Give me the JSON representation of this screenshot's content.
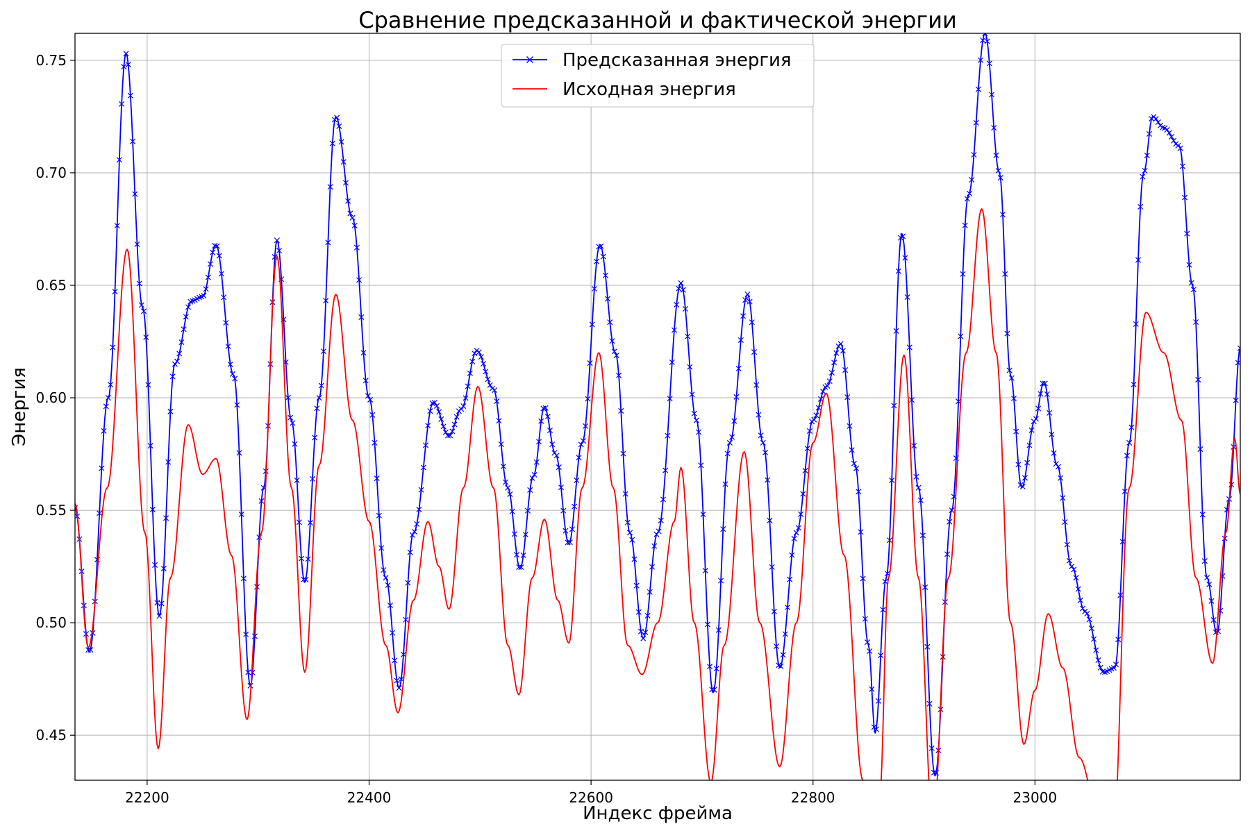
{
  "chart_data": {
    "type": "line",
    "title": "Сравнение предсказанной и фактической энергии",
    "xlabel": "Индекс фрейма",
    "ylabel": "Энергия",
    "xlim": [
      22135,
      23185
    ],
    "ylim": [
      0.43,
      0.762
    ],
    "xticks": [
      22200,
      22400,
      22600,
      22800,
      23000
    ],
    "yticks": [
      0.45,
      0.5,
      0.55,
      0.6,
      0.65,
      0.7,
      0.75
    ],
    "grid": true,
    "legend_position": "top-center",
    "series": [
      {
        "name": "Предсказанная энергия",
        "color": "#0000ff",
        "marker": "x",
        "keypoints": [
          [
            22135,
            0.551
          ],
          [
            22148,
            0.487
          ],
          [
            22165,
            0.6
          ],
          [
            22181,
            0.753
          ],
          [
            22196,
            0.64
          ],
          [
            22211,
            0.503
          ],
          [
            22225,
            0.615
          ],
          [
            22240,
            0.643
          ],
          [
            22250,
            0.645
          ],
          [
            22262,
            0.668
          ],
          [
            22278,
            0.61
          ],
          [
            22293,
            0.472
          ],
          [
            22305,
            0.56
          ],
          [
            22317,
            0.67
          ],
          [
            22330,
            0.59
          ],
          [
            22342,
            0.518
          ],
          [
            22355,
            0.6
          ],
          [
            22370,
            0.725
          ],
          [
            22385,
            0.68
          ],
          [
            22400,
            0.6
          ],
          [
            22415,
            0.52
          ],
          [
            22427,
            0.471
          ],
          [
            22440,
            0.54
          ],
          [
            22458,
            0.598
          ],
          [
            22472,
            0.583
          ],
          [
            22483,
            0.595
          ],
          [
            22497,
            0.621
          ],
          [
            22512,
            0.604
          ],
          [
            22525,
            0.56
          ],
          [
            22536,
            0.524
          ],
          [
            22548,
            0.565
          ],
          [
            22558,
            0.596
          ],
          [
            22568,
            0.575
          ],
          [
            22580,
            0.535
          ],
          [
            22592,
            0.58
          ],
          [
            22608,
            0.668
          ],
          [
            22622,
            0.62
          ],
          [
            22635,
            0.54
          ],
          [
            22647,
            0.493
          ],
          [
            22660,
            0.54
          ],
          [
            22681,
            0.651
          ],
          [
            22695,
            0.59
          ],
          [
            22710,
            0.469
          ],
          [
            22725,
            0.58
          ],
          [
            22741,
            0.646
          ],
          [
            22755,
            0.58
          ],
          [
            22770,
            0.48
          ],
          [
            22785,
            0.54
          ],
          [
            22800,
            0.59
          ],
          [
            22812,
            0.605
          ],
          [
            22825,
            0.624
          ],
          [
            22838,
            0.57
          ],
          [
            22850,
            0.49
          ],
          [
            22856,
            0.451
          ],
          [
            22866,
            0.52
          ],
          [
            22880,
            0.673
          ],
          [
            22895,
            0.56
          ],
          [
            22910,
            0.432
          ],
          [
            22925,
            0.55
          ],
          [
            22940,
            0.69
          ],
          [
            22955,
            0.762
          ],
          [
            22968,
            0.7
          ],
          [
            22978,
            0.61
          ],
          [
            22988,
            0.56
          ],
          [
            23000,
            0.59
          ],
          [
            23008,
            0.607
          ],
          [
            23020,
            0.57
          ],
          [
            23033,
            0.525
          ],
          [
            23045,
            0.505
          ],
          [
            23062,
            0.478
          ],
          [
            23072,
            0.48
          ],
          [
            23085,
            0.58
          ],
          [
            23098,
            0.7
          ],
          [
            23106,
            0.725
          ],
          [
            23116,
            0.72
          ],
          [
            23130,
            0.712
          ],
          [
            23142,
            0.65
          ],
          [
            23155,
            0.52
          ],
          [
            23164,
            0.495
          ],
          [
            23175,
            0.555
          ],
          [
            23185,
            0.622
          ]
        ]
      },
      {
        "name": "Исходная энергия",
        "color": "#ff0000",
        "marker": "none",
        "keypoints": [
          [
            22135,
            0.553
          ],
          [
            22147,
            0.489
          ],
          [
            22164,
            0.56
          ],
          [
            22182,
            0.666
          ],
          [
            22198,
            0.54
          ],
          [
            22210,
            0.444
          ],
          [
            22221,
            0.52
          ],
          [
            22237,
            0.588
          ],
          [
            22250,
            0.566
          ],
          [
            22262,
            0.573
          ],
          [
            22276,
            0.53
          ],
          [
            22290,
            0.457
          ],
          [
            22303,
            0.54
          ],
          [
            22317,
            0.663
          ],
          [
            22330,
            0.56
          ],
          [
            22342,
            0.478
          ],
          [
            22355,
            0.57
          ],
          [
            22370,
            0.646
          ],
          [
            22385,
            0.59
          ],
          [
            22400,
            0.545
          ],
          [
            22415,
            0.49
          ],
          [
            22426,
            0.46
          ],
          [
            22440,
            0.51
          ],
          [
            22453,
            0.545
          ],
          [
            22463,
            0.525
          ],
          [
            22472,
            0.506
          ],
          [
            22485,
            0.56
          ],
          [
            22498,
            0.605
          ],
          [
            22512,
            0.56
          ],
          [
            22525,
            0.49
          ],
          [
            22535,
            0.468
          ],
          [
            22547,
            0.52
          ],
          [
            22558,
            0.546
          ],
          [
            22570,
            0.51
          ],
          [
            22580,
            0.491
          ],
          [
            22592,
            0.56
          ],
          [
            22607,
            0.62
          ],
          [
            22620,
            0.56
          ],
          [
            22633,
            0.49
          ],
          [
            22646,
            0.477
          ],
          [
            22660,
            0.5
          ],
          [
            22675,
            0.545
          ],
          [
            22681,
            0.569
          ],
          [
            22693,
            0.5
          ],
          [
            22708,
            0.429
          ],
          [
            22720,
            0.49
          ],
          [
            22738,
            0.576
          ],
          [
            22752,
            0.5
          ],
          [
            22770,
            0.436
          ],
          [
            22785,
            0.5
          ],
          [
            22800,
            0.58
          ],
          [
            22812,
            0.602
          ],
          [
            22828,
            0.53
          ],
          [
            22845,
            0.43
          ],
          [
            22860,
            0.422
          ],
          [
            22868,
            0.52
          ],
          [
            22882,
            0.619
          ],
          [
            22895,
            0.52
          ],
          [
            22908,
            0.41
          ],
          [
            22922,
            0.52
          ],
          [
            22938,
            0.62
          ],
          [
            22952,
            0.684
          ],
          [
            22965,
            0.62
          ],
          [
            22978,
            0.5
          ],
          [
            22990,
            0.446
          ],
          [
            23000,
            0.47
          ],
          [
            23012,
            0.504
          ],
          [
            23025,
            0.48
          ],
          [
            23040,
            0.44
          ],
          [
            23055,
            0.42
          ],
          [
            23070,
            0.4
          ],
          [
            23085,
            0.56
          ],
          [
            23100,
            0.638
          ],
          [
            23116,
            0.62
          ],
          [
            23132,
            0.59
          ],
          [
            23145,
            0.52
          ],
          [
            23160,
            0.482
          ],
          [
            23172,
            0.54
          ],
          [
            23180,
            0.582
          ],
          [
            23185,
            0.557
          ]
        ]
      }
    ]
  }
}
